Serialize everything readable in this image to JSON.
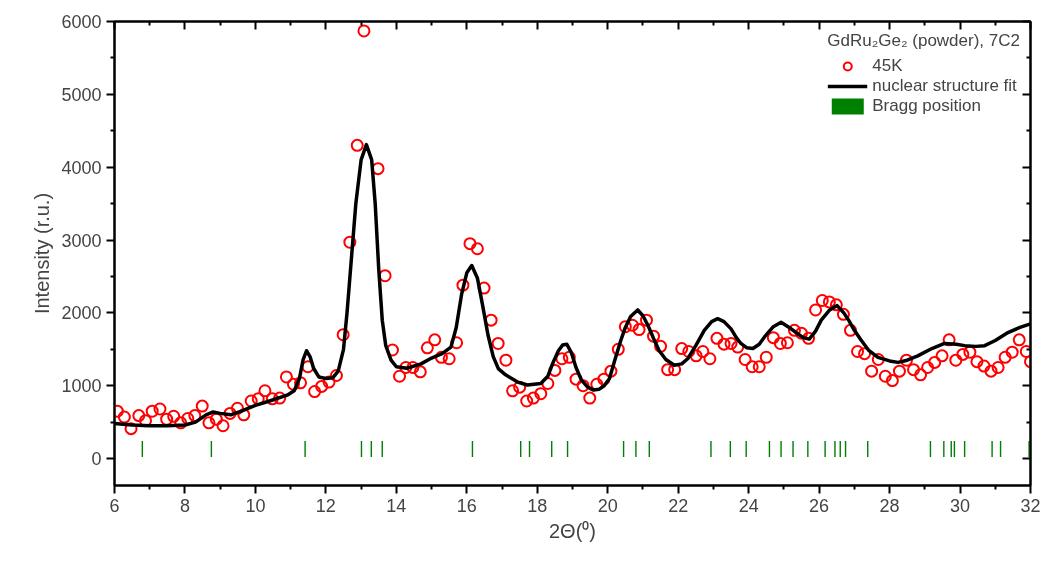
{
  "chart_data": {
    "type": "scatter",
    "xlabel": "2Θ(⁰)",
    "ylabel": "Intensity (r.u.)",
    "legend_title": "GdRu₂Ge₂ (powder), 7C2",
    "xlim": [
      6,
      32
    ],
    "ylim": [
      -370,
      6000
    ],
    "xticks": [
      6,
      8,
      10,
      12,
      14,
      16,
      18,
      20,
      22,
      24,
      26,
      28,
      30,
      32
    ],
    "yticks": [
      0,
      1000,
      2000,
      3000,
      4000,
      5000,
      6000
    ],
    "legend": "top right",
    "series": [
      {
        "name": "45K",
        "marker": "circle",
        "color": "#ff0000",
        "x": [
          6.08,
          6.28,
          6.47,
          6.69,
          6.88,
          7.07,
          7.29,
          7.48,
          7.68,
          7.88,
          8.08,
          8.28,
          8.49,
          8.68,
          8.89,
          9.08,
          9.28,
          9.49,
          9.67,
          9.88,
          10.08,
          10.27,
          10.48,
          10.69,
          10.88,
          11.08,
          11.28,
          11.49,
          11.68,
          11.88,
          12.09,
          12.3,
          12.49,
          12.68,
          12.89,
          13.08,
          13.48,
          13.68,
          13.89,
          14.09,
          14.27,
          14.47,
          14.68,
          14.88,
          15.09,
          15.28,
          15.5,
          15.71,
          15.89,
          16.09,
          16.3,
          16.49,
          16.69,
          16.89,
          17.11,
          17.3,
          17.5,
          17.7,
          17.89,
          18.1,
          18.3,
          18.5,
          18.7,
          18.91,
          19.1,
          19.3,
          19.49,
          19.69,
          19.89,
          20.09,
          20.3,
          20.5,
          20.7,
          20.89,
          21.1,
          21.3,
          21.5,
          21.7,
          21.9,
          22.1,
          22.3,
          22.51,
          22.7,
          22.9,
          23.1,
          23.3,
          23.5,
          23.69,
          23.9,
          24.1,
          24.3,
          24.5,
          24.7,
          24.9,
          25.1,
          25.3,
          25.5,
          25.7,
          25.9,
          26.09,
          26.29,
          26.49,
          26.69,
          26.89,
          27.09,
          27.29,
          27.49,
          27.68,
          27.88,
          28.08,
          28.28,
          28.48,
          28.68,
          28.88,
          29.08,
          29.28,
          29.49,
          29.69,
          29.88,
          30.08,
          30.28,
          30.48,
          30.68,
          30.88,
          31.08,
          31.28,
          31.48,
          31.68,
          31.88,
          32.0
        ],
        "values": [
          650,
          570,
          410,
          590,
          520,
          650,
          680,
          540,
          580,
          490,
          550,
          590,
          720,
          490,
          540,
          450,
          620,
          690,
          600,
          790,
          820,
          930,
          820,
          830,
          1120,
          1020,
          1040,
          1260,
          920,
          990,
          1050,
          1140,
          1700,
          2970,
          4300,
          5870,
          3980,
          2510,
          1490,
          1130,
          1250,
          1250,
          1190,
          1520,
          1630,
          1390,
          1370,
          1590,
          2380,
          2950,
          2880,
          2340,
          1900,
          1580,
          1350,
          930,
          980,
          790,
          830,
          890,
          1030,
          1210,
          1370,
          1390,
          1090,
          1000,
          830,
          1020,
          1090,
          1200,
          1500,
          1810,
          1830,
          1770,
          1900,
          1680,
          1540,
          1220,
          1220,
          1510,
          1470,
          1410,
          1470,
          1370,
          1650,
          1570,
          1580,
          1530,
          1360,
          1260,
          1260,
          1390,
          1660,
          1580,
          1590,
          1760,
          1720,
          1650,
          2040,
          2170,
          2150,
          2110,
          1980,
          1760,
          1470,
          1440,
          1200,
          1360,
          1130,
          1070,
          1200,
          1350,
          1220,
          1150,
          1250,
          1320,
          1410,
          1630,
          1350,
          1430,
          1460,
          1330,
          1270,
          1200,
          1250,
          1390,
          1460,
          1630,
          1470,
          1330
        ]
      },
      {
        "name": "nuclear structure fit",
        "type": "line",
        "color": "#000000",
        "x": [
          6.0,
          6.5,
          7.0,
          7.5,
          8.0,
          8.3,
          8.6,
          8.8,
          9.0,
          9.3,
          9.6,
          10.0,
          10.4,
          10.9,
          11.1,
          11.25,
          11.35,
          11.45,
          11.55,
          11.65,
          11.8,
          12.0,
          12.2,
          12.35,
          12.5,
          12.6,
          12.7,
          12.85,
          13.0,
          13.15,
          13.3,
          13.4,
          13.5,
          13.6,
          13.7,
          13.85,
          14.0,
          14.3,
          14.7,
          15.0,
          15.3,
          15.55,
          15.7,
          15.85,
          16.0,
          16.14,
          16.3,
          16.45,
          16.6,
          16.75,
          16.9,
          17.1,
          17.44,
          17.72,
          18.1,
          18.3,
          18.45,
          18.6,
          18.72,
          18.84,
          18.97,
          19.1,
          19.25,
          19.43,
          19.6,
          19.75,
          19.9,
          20.05,
          20.2,
          20.37,
          20.5,
          20.65,
          20.85,
          21.0,
          21.15,
          21.3,
          21.46,
          21.65,
          21.89,
          22.1,
          22.27,
          22.5,
          22.74,
          22.95,
          23.12,
          23.3,
          23.5,
          23.65,
          23.78,
          23.95,
          24.12,
          24.3,
          24.45,
          24.7,
          24.92,
          25.15,
          25.4,
          25.55,
          25.72,
          25.9,
          26.06,
          26.3,
          26.51,
          26.7,
          26.85,
          27.0,
          27.2,
          27.4,
          27.67,
          28.0,
          28.24,
          28.5,
          28.8,
          29.2,
          29.56,
          29.9,
          30.13,
          30.45,
          30.7,
          31.0,
          31.36,
          31.7,
          32.0
        ],
        "values": [
          480,
          460,
          450,
          450,
          460,
          500,
          600,
          640,
          620,
          600,
          650,
          730,
          790,
          870,
          930,
          1100,
          1350,
          1480,
          1400,
          1240,
          1120,
          1100,
          1110,
          1200,
          1500,
          2000,
          2600,
          3500,
          4100,
          4310,
          4100,
          3500,
          2600,
          1900,
          1550,
          1350,
          1260,
          1240,
          1300,
          1380,
          1440,
          1530,
          1800,
          2250,
          2550,
          2650,
          2480,
          2100,
          1700,
          1400,
          1230,
          1150,
          1050,
          1010,
          1030,
          1130,
          1320,
          1480,
          1560,
          1570,
          1450,
          1250,
          1080,
          980,
          940,
          950,
          1000,
          1100,
          1350,
          1620,
          1800,
          1950,
          2040,
          1960,
          1820,
          1650,
          1480,
          1360,
          1280,
          1300,
          1370,
          1550,
          1760,
          1880,
          1920,
          1880,
          1780,
          1660,
          1580,
          1520,
          1510,
          1570,
          1670,
          1810,
          1870,
          1800,
          1710,
          1660,
          1640,
          1750,
          1900,
          2040,
          2100,
          2000,
          1890,
          1760,
          1620,
          1490,
          1390,
          1340,
          1320,
          1350,
          1410,
          1510,
          1580,
          1570,
          1550,
          1540,
          1550,
          1620,
          1730,
          1800,
          1850
        ]
      },
      {
        "name": "Bragg position",
        "type": "bar",
        "base": [
          20,
          20,
          20,
          20,
          20,
          20,
          20,
          20,
          20,
          20,
          20,
          20,
          20,
          20,
          20,
          20,
          20,
          20,
          20,
          20,
          20,
          20,
          20,
          20,
          20,
          20,
          20,
          20,
          20,
          20,
          20,
          20,
          20,
          20
        ],
        "color": "#008000",
        "x": [
          6.79,
          8.75,
          11.41,
          13.01,
          13.29,
          13.6,
          16.16,
          17.53,
          17.78,
          18.41,
          18.86,
          20.45,
          20.8,
          21.18,
          22.93,
          23.48,
          23.93,
          24.59,
          24.92,
          25.26,
          25.68,
          26.17,
          26.45,
          26.6,
          26.75,
          27.38,
          29.16,
          29.54,
          29.75,
          29.84,
          30.13,
          30.91,
          31.15,
          31.96
        ],
        "values": [
          220,
          220,
          220,
          220,
          220,
          220,
          220,
          220,
          220,
          220,
          220,
          220,
          220,
          220,
          220,
          220,
          220,
          220,
          220,
          220,
          220,
          220,
          220,
          220,
          220,
          220,
          220,
          220,
          220,
          220,
          220,
          220,
          220,
          220
        ]
      }
    ]
  }
}
